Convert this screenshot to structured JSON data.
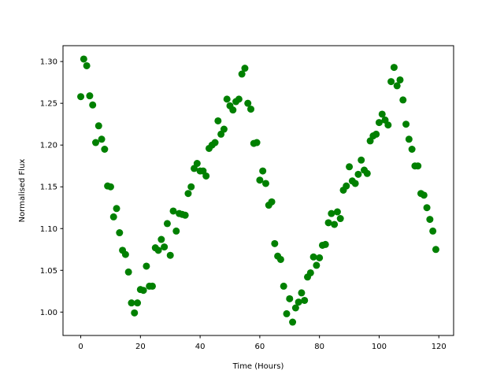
{
  "chart_data": {
    "type": "scatter",
    "title": "",
    "xlabel": "Time (Hours)",
    "ylabel": "Normalised Flux",
    "xlim": [
      -5.95,
      124.95
    ],
    "ylim": [
      0.972,
      1.319
    ],
    "xticks": [
      "0",
      "20",
      "40",
      "60",
      "80",
      "100",
      "120"
    ],
    "yticks": [
      "1.00",
      "1.05",
      "1.10",
      "1.15",
      "1.20",
      "1.25",
      "1.30"
    ],
    "grid": false,
    "marker_color": "#008000",
    "x_start": 0,
    "x_step": 1,
    "y": [
      1.258,
      1.303,
      1.295,
      1.259,
      1.248,
      1.203,
      1.223,
      1.207,
      1.195,
      1.151,
      1.15,
      1.114,
      1.124,
      1.095,
      1.074,
      1.069,
      1.048,
      1.011,
      0.999,
      1.011,
      1.027,
      1.026,
      1.055,
      1.031,
      1.031,
      1.077,
      1.074,
      1.087,
      1.078,
      1.106,
      1.068,
      1.121,
      1.097,
      1.118,
      1.117,
      1.116,
      1.142,
      1.15,
      1.172,
      1.178,
      1.169,
      1.169,
      1.163,
      1.196,
      1.2,
      1.203,
      1.229,
      1.213,
      1.219,
      1.255,
      1.247,
      1.242,
      1.252,
      1.255,
      1.285,
      1.292,
      1.25,
      1.243,
      1.202,
      1.203,
      1.158,
      1.169,
      1.154,
      1.128,
      1.132,
      1.082,
      1.067,
      1.063,
      1.031,
      0.998,
      1.016,
      0.988,
      1.005,
      1.012,
      1.023,
      1.014,
      1.042,
      1.047,
      1.066,
      1.056,
      1.065,
      1.08,
      1.081,
      1.107,
      1.118,
      1.105,
      1.12,
      1.112,
      1.146,
      1.151,
      1.174,
      1.157,
      1.154,
      1.165,
      1.182,
      1.17,
      1.166,
      1.205,
      1.211,
      1.213,
      1.227,
      1.237,
      1.23,
      1.224,
      1.276,
      1.293,
      1.271,
      1.278,
      1.254,
      1.225,
      1.207,
      1.195,
      1.175,
      1.175,
      1.142,
      1.14,
      1.125,
      1.111,
      1.097,
      1.075
    ]
  }
}
